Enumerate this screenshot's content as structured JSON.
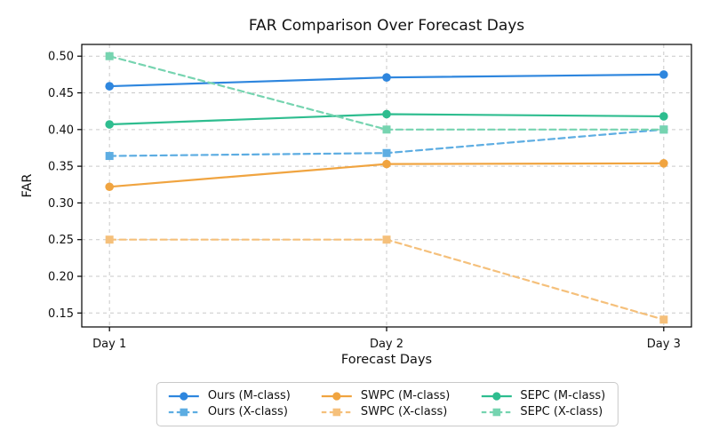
{
  "chart_data": {
    "type": "line",
    "title": "FAR Comparison Over Forecast Days",
    "xlabel": "Forecast Days",
    "ylabel": "FAR",
    "categories": [
      "Day 1",
      "Day 2",
      "Day 3"
    ],
    "y_ticks": [
      0.15,
      0.2,
      0.25,
      0.3,
      0.35,
      0.4,
      0.45,
      0.5
    ],
    "ylim": [
      0.131,
      0.516
    ],
    "grid": true,
    "legend_position": "bottom-center",
    "series": [
      {
        "name": "Ours (M-class)",
        "values": [
          0.459,
          0.471,
          0.475
        ],
        "color": "#2E86DE",
        "style": "solid",
        "marker": "circle"
      },
      {
        "name": "Ours (X-class)",
        "values": [
          0.364,
          0.368,
          0.4
        ],
        "color": "#5DADE2",
        "style": "dashed",
        "marker": "square"
      },
      {
        "name": "SWPC (M-class)",
        "values": [
          0.322,
          0.353,
          0.354
        ],
        "color": "#F0A440",
        "style": "solid",
        "marker": "circle"
      },
      {
        "name": "SWPC (X-class)",
        "values": [
          0.25,
          0.25,
          0.141
        ],
        "color": "#F5C07B",
        "style": "dashed",
        "marker": "square"
      },
      {
        "name": "SEPC (M-class)",
        "values": [
          0.407,
          0.421,
          0.418
        ],
        "color": "#2EBD8F",
        "style": "solid",
        "marker": "circle"
      },
      {
        "name": "SEPC (X-class)",
        "values": [
          0.5,
          0.4,
          0.4
        ],
        "color": "#76D4B0",
        "style": "dashed",
        "marker": "square"
      }
    ],
    "colors": {
      "grid": "#c9c9c9",
      "spine": "#000000",
      "text": "#111111",
      "legend_border": "#c9c9c9"
    }
  }
}
